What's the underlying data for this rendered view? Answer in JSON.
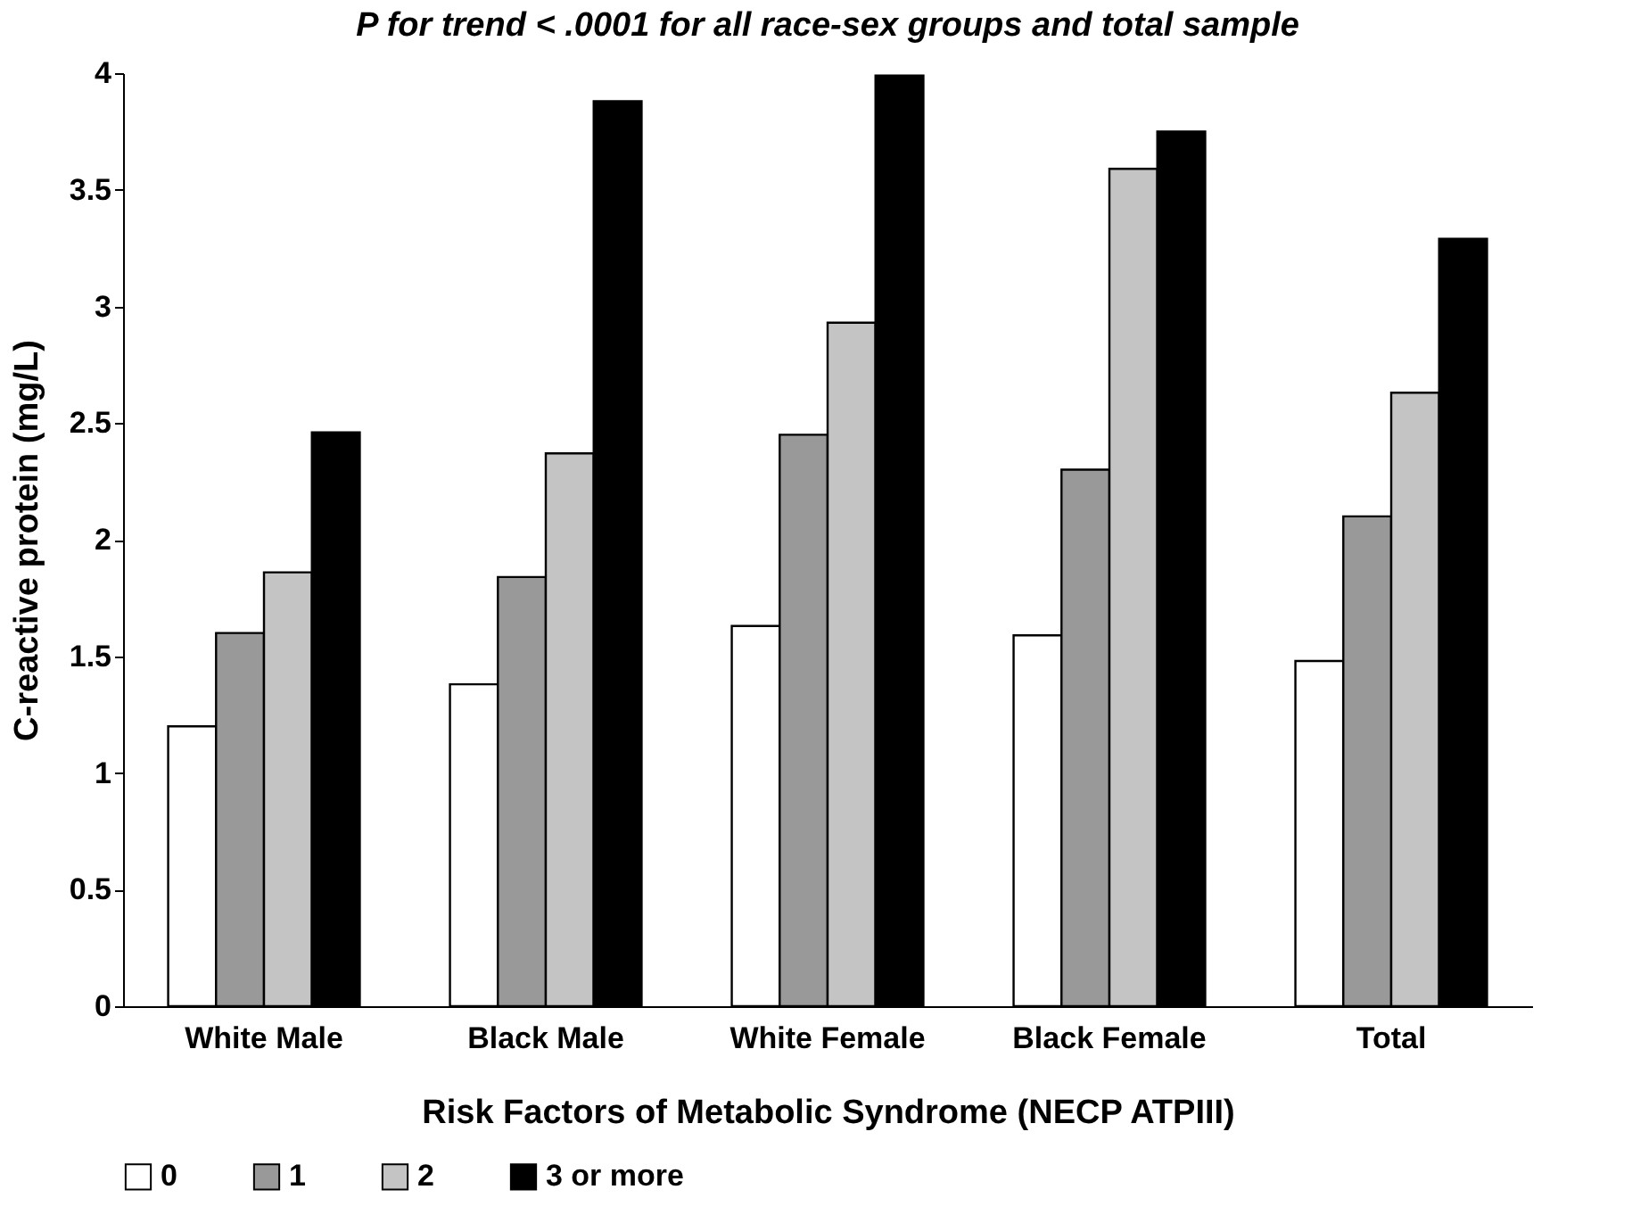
{
  "chart_data": {
    "type": "bar",
    "title": "P for trend < .0001 for all race-sex groups and total sample",
    "xlabel": "Risk Factors of Metabolic Syndrome (NECP ATPIII)",
    "ylabel": "C-reactive protein (mg/L)",
    "categories": [
      "White Male",
      "Black Male",
      "White Female",
      "Black Female",
      "Total"
    ],
    "series": [
      {
        "name": "0",
        "color": "#ffffff",
        "values": [
          1.2,
          1.38,
          1.63,
          1.59,
          1.48
        ]
      },
      {
        "name": "1",
        "color": "#999999",
        "values": [
          1.6,
          1.84,
          2.45,
          2.3,
          2.1
        ]
      },
      {
        "name": "2",
        "color": "#c4c4c4",
        "values": [
          1.86,
          2.37,
          2.93,
          3.59,
          2.63
        ]
      },
      {
        "name": "3 or more",
        "color": "#000000",
        "values": [
          2.46,
          3.88,
          3.99,
          3.75,
          3.29
        ]
      }
    ],
    "ylim": [
      0,
      4
    ],
    "yticks": [
      0,
      0.5,
      1,
      1.5,
      2,
      2.5,
      3,
      3.5,
      4
    ],
    "grid": false,
    "legend": "bottom"
  }
}
